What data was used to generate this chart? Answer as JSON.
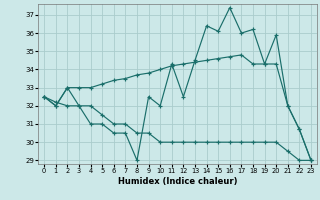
{
  "xlabel": "Humidex (Indice chaleur)",
  "bg_color": "#cce8e8",
  "grid_color": "#aacccc",
  "line_color": "#1a6e6a",
  "xlim": [
    -0.5,
    23.5
  ],
  "ylim": [
    28.8,
    37.6
  ],
  "yticks": [
    29,
    30,
    31,
    32,
    33,
    34,
    35,
    36,
    37
  ],
  "xticks": [
    0,
    1,
    2,
    3,
    4,
    5,
    6,
    7,
    8,
    9,
    10,
    11,
    12,
    13,
    14,
    15,
    16,
    17,
    18,
    19,
    20,
    21,
    22,
    23
  ],
  "series": [
    [
      32.5,
      32.0,
      33.0,
      32.0,
      31.0,
      31.0,
      30.5,
      30.5,
      29.0,
      32.5,
      32.0,
      34.3,
      32.5,
      34.5,
      36.4,
      36.1,
      37.4,
      36.0,
      36.2,
      34.3,
      35.9,
      32.0,
      30.7,
      29.0
    ],
    [
      32.5,
      32.0,
      33.0,
      33.0,
      33.0,
      33.2,
      33.4,
      33.5,
      33.7,
      33.8,
      34.0,
      34.2,
      34.3,
      34.4,
      34.5,
      34.6,
      34.7,
      34.8,
      34.3,
      34.3,
      34.3,
      32.0,
      30.7,
      29.0
    ],
    [
      32.5,
      32.2,
      32.0,
      32.0,
      32.0,
      31.5,
      31.0,
      31.0,
      30.5,
      30.5,
      30.0,
      30.0,
      30.0,
      30.0,
      30.0,
      30.0,
      30.0,
      30.0,
      30.0,
      30.0,
      30.0,
      29.5,
      29.0,
      29.0
    ]
  ]
}
